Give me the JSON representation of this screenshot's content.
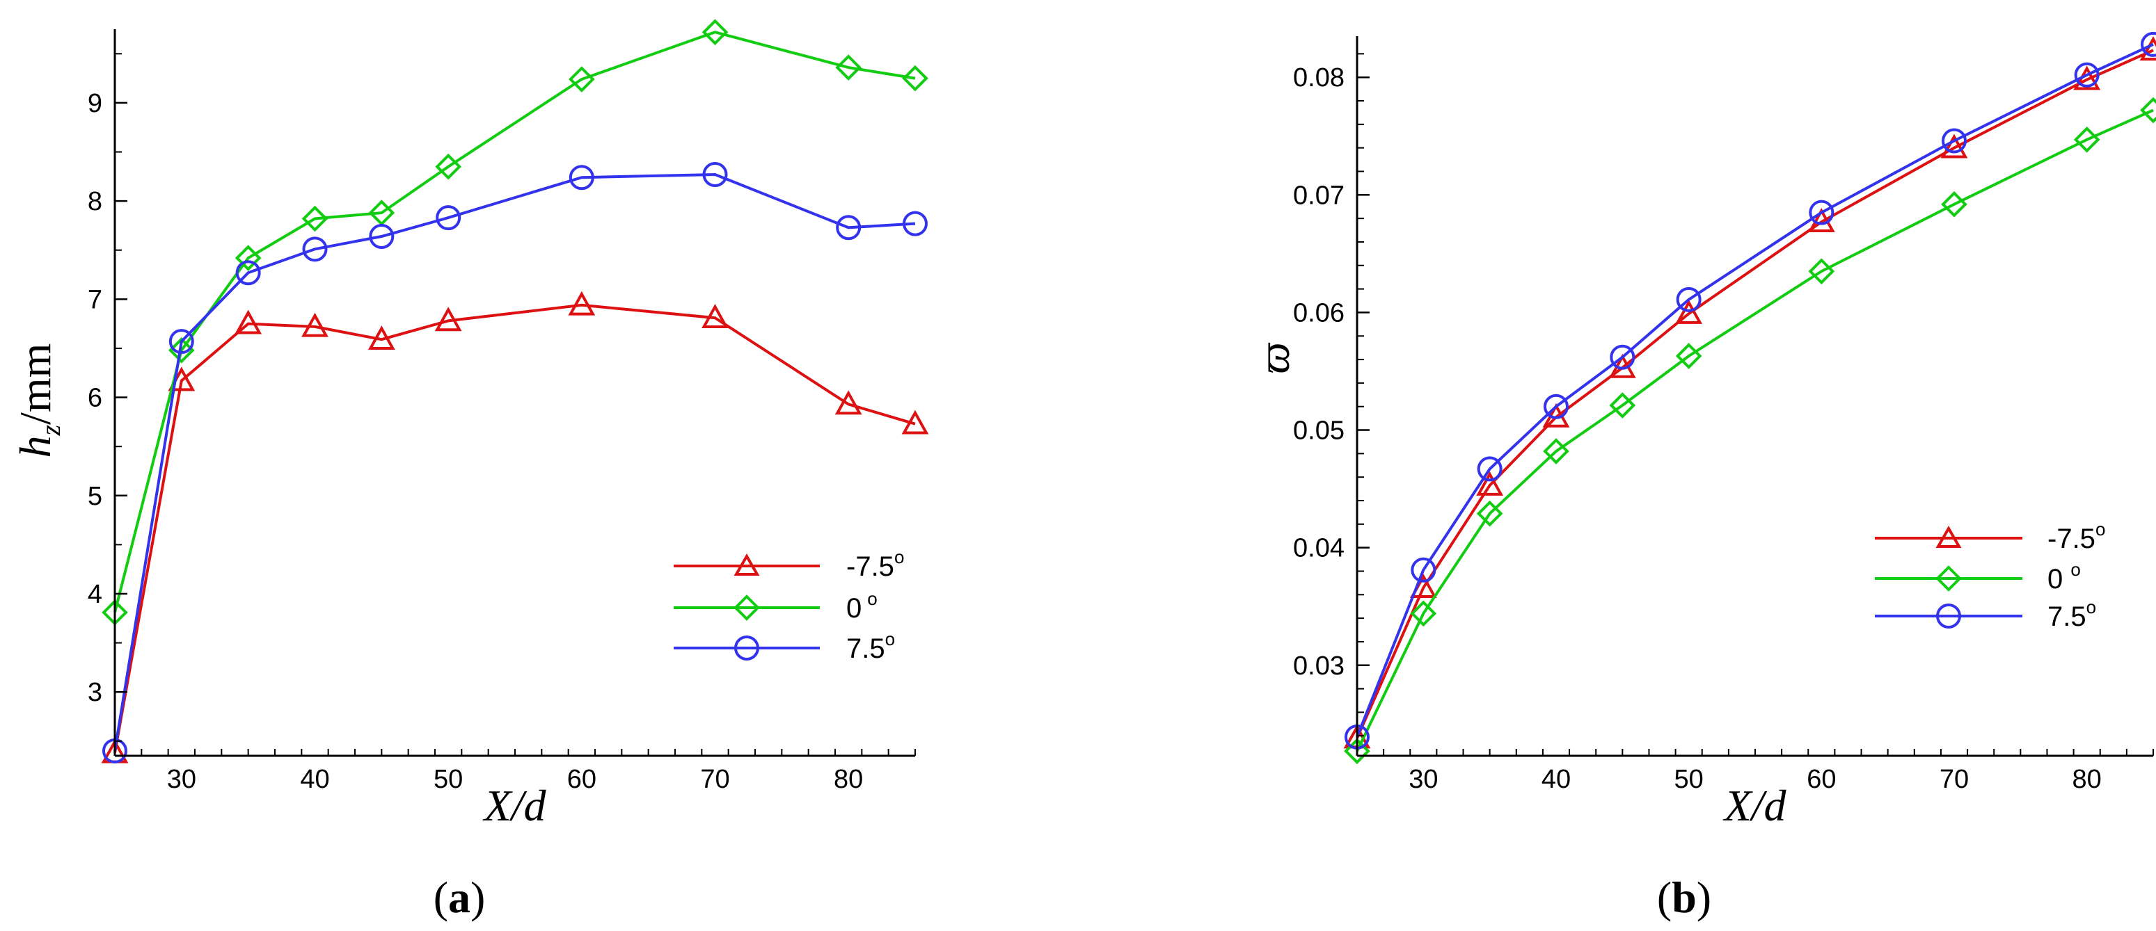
{
  "colors": {
    "red": "#dd1111",
    "green": "#11cc11",
    "blue": "#3333ee"
  },
  "chart_data": [
    {
      "type": "line",
      "panel_label": "(a)",
      "panel_letter": "a",
      "xlabel": "X/d",
      "ylabel": "h_z/mm",
      "ylabel_main": "h",
      "ylabel_sub": "z",
      "ylabel_rest": "/mm",
      "xlim": [
        25,
        85
      ],
      "ylim": [
        2.35,
        9.75
      ],
      "xticks": [
        30,
        40,
        50,
        60,
        70,
        80
      ],
      "xtick_labels": [
        "30",
        "40",
        "50",
        "60",
        "70",
        "80"
      ],
      "yticks": [
        3,
        4,
        5,
        6,
        7,
        8,
        9
      ],
      "ytick_labels": [
        "3",
        "4",
        "5",
        "6",
        "7",
        "8",
        "9"
      ],
      "legend_position": "lower-right",
      "series": [
        {
          "name": "-7.5°",
          "label_main": "-7.5",
          "label_deg": "o",
          "color": "#dd1111",
          "marker": "triangle",
          "x": [
            25,
            30,
            35,
            40,
            45,
            50,
            60,
            70,
            80,
            85
          ],
          "y": [
            2.38,
            6.17,
            6.75,
            6.72,
            6.59,
            6.78,
            6.94,
            6.81,
            5.93,
            5.73
          ]
        },
        {
          "name": "0°",
          "label_main": "0",
          "label_deg": "o",
          "color": "#11cc11",
          "marker": "diamond",
          "x": [
            25,
            30,
            35,
            40,
            45,
            50,
            60,
            70,
            80,
            85
          ],
          "y": [
            3.81,
            6.48,
            7.42,
            7.82,
            7.88,
            8.35,
            9.24,
            9.72,
            9.36,
            9.25
          ]
        },
        {
          "name": "7.5°",
          "label_main": "7.5",
          "label_deg": "o",
          "color": "#3333ee",
          "marker": "circle",
          "x": [
            25,
            30,
            35,
            40,
            45,
            50,
            60,
            70,
            80,
            85
          ],
          "y": [
            2.4,
            6.57,
            7.27,
            7.51,
            7.64,
            7.83,
            8.24,
            8.27,
            7.73,
            7.77
          ]
        }
      ]
    },
    {
      "type": "line",
      "panel_label": "(b)",
      "panel_letter": "b",
      "xlabel": "X/d",
      "ylabel": "ϖ",
      "xlim": [
        25,
        85
      ],
      "ylim": [
        0.0223,
        0.0835
      ],
      "xticks": [
        30,
        40,
        50,
        60,
        70,
        80
      ],
      "xtick_labels": [
        "30",
        "40",
        "50",
        "60",
        "70",
        "80"
      ],
      "yticks": [
        0.03,
        0.04,
        0.05,
        0.06,
        0.07,
        0.08
      ],
      "ytick_labels": [
        "0.03",
        "0.04",
        "0.05",
        "0.06",
        "0.07",
        "0.08"
      ],
      "legend_position": "center-right",
      "series": [
        {
          "name": "-7.5°",
          "label_main": "-7.5",
          "label_deg": "o",
          "color": "#dd1111",
          "marker": "triangle",
          "x": [
            25,
            30,
            35,
            40,
            45,
            50,
            60,
            70,
            80,
            85
          ],
          "y": [
            0.0238,
            0.0366,
            0.0453,
            0.0511,
            0.0553,
            0.0599,
            0.0677,
            0.074,
            0.0798,
            0.0823
          ]
        },
        {
          "name": "0 °",
          "label_main": "0 ",
          "label_deg": "o",
          "color": "#11cc11",
          "marker": "diamond",
          "x": [
            25,
            30,
            35,
            40,
            45,
            50,
            60,
            70,
            80,
            85
          ],
          "y": [
            0.0227,
            0.0344,
            0.0429,
            0.0482,
            0.0521,
            0.0563,
            0.0635,
            0.0692,
            0.0747,
            0.0772
          ]
        },
        {
          "name": "7.5°",
          "label_main": "7.5",
          "label_deg": "o",
          "color": "#3333ee",
          "marker": "circle",
          "x": [
            25,
            30,
            35,
            40,
            45,
            50,
            60,
            70,
            80,
            85
          ],
          "y": [
            0.0239,
            0.0381,
            0.0467,
            0.052,
            0.0562,
            0.0611,
            0.0685,
            0.0746,
            0.0802,
            0.0828
          ]
        }
      ]
    }
  ]
}
